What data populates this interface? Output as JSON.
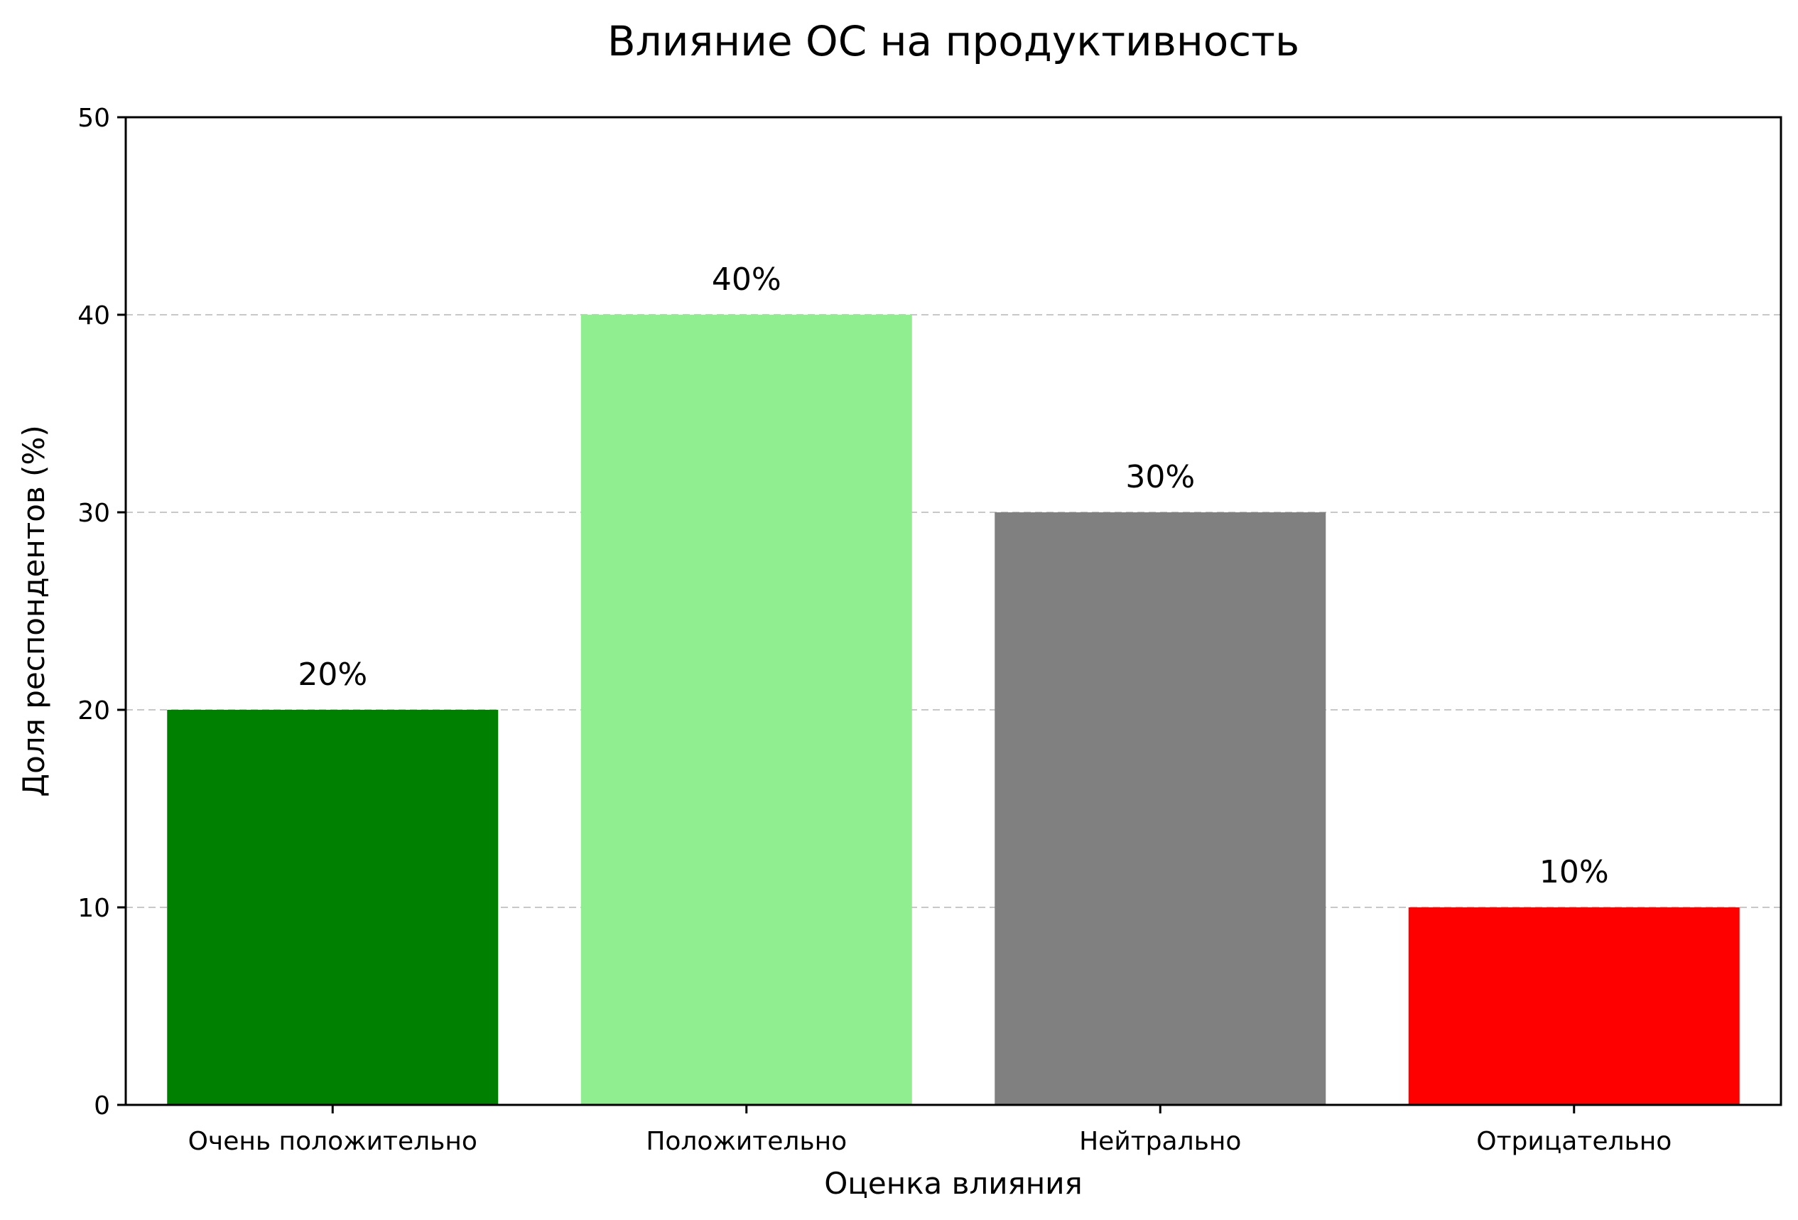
{
  "chart_data": {
    "type": "bar",
    "title": "Влияние ОС на продуктивность",
    "xlabel": "Оценка влияния",
    "ylabel": "Доля респондентов (%)",
    "categories": [
      "Очень положительно",
      "Положительно",
      "Нейтрально",
      "Отрицательно"
    ],
    "values": [
      20,
      40,
      30,
      10
    ],
    "data_labels": [
      "20%",
      "40%",
      "30%",
      "10%"
    ],
    "colors": [
      "#008000",
      "#90ee90",
      "#808080",
      "#ff0000"
    ],
    "ylim": [
      0,
      50
    ],
    "yticks": [
      0,
      10,
      20,
      30,
      40,
      50
    ],
    "grid": "y-dashed",
    "legend": "none"
  }
}
